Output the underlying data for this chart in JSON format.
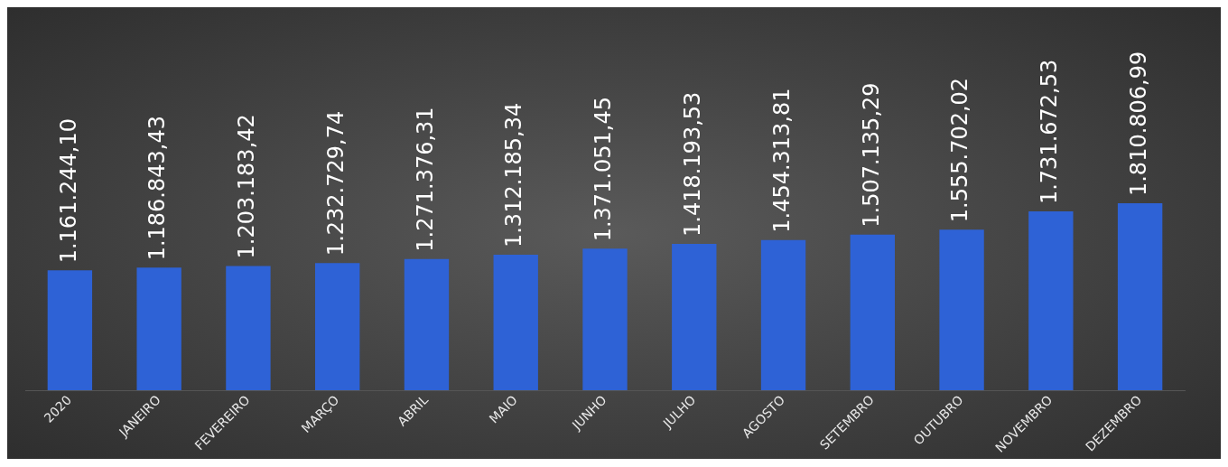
{
  "chart_data": {
    "type": "bar",
    "categories": [
      "2020",
      "JANEIRO",
      "FEVEREIRO",
      "MARÇO",
      "ABRIL",
      "MAIO",
      "JUNHO",
      "JULHO",
      "AGOSTO",
      "SETEMBRO",
      "OUTUBRO",
      "NOVEMBRO",
      "DEZEMBRO"
    ],
    "values": [
      1161244.1,
      1186843.43,
      1203183.42,
      1232729.74,
      1271376.31,
      1312185.34,
      1371051.45,
      1418193.53,
      1454313.81,
      1507135.29,
      1555702.02,
      1731672.53,
      1810806.99
    ],
    "value_labels": [
      "1.161.244,10",
      "1.186.843,43",
      "1.203.183,42",
      "1.232.729,74",
      "1.271.376,31",
      "1.312.185,34",
      "1.371.051,45",
      "1.418.193,53",
      "1.454.313,81",
      "1.507.135,29",
      "1.555.702,02",
      "1.731.672,53",
      "1.810.806,99"
    ],
    "color": "#2e62d6",
    "grid": false,
    "legend": false,
    "tick_labels": "x"
  }
}
